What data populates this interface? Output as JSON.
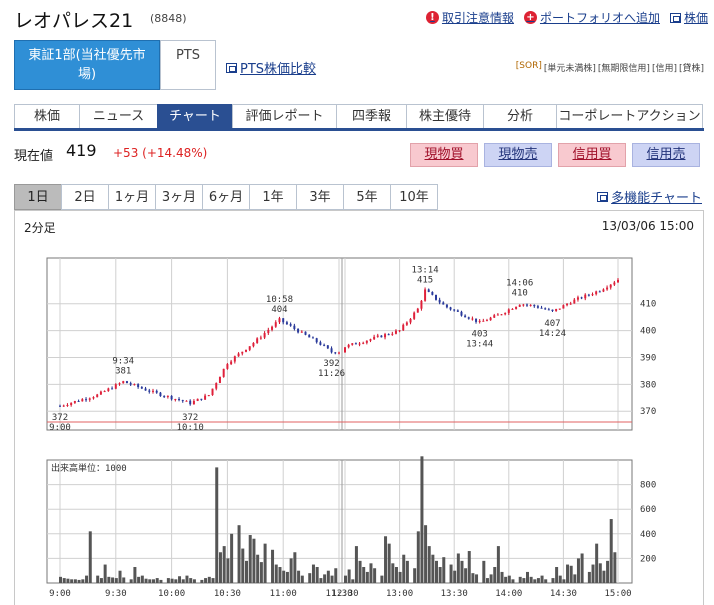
{
  "header": {
    "name": "レオパレス21",
    "code": "(8848)",
    "links": [
      "取引注意情報",
      "ポートフォリオへ追加",
      "株価"
    ]
  },
  "market": {
    "exchange_line1": "東証1部(当社優先市",
    "exchange_line2": "場)",
    "pts_label": "PTS",
    "pts_compare": "PTS株価比較",
    "badges": [
      "[SOR]",
      "[単元未満株]",
      "[無期限信用]",
      "[信用]",
      "[貸株]"
    ]
  },
  "tabs": [
    "株価",
    "ニュース",
    "チャート",
    "評価レポート",
    "四季報",
    "株主優待",
    "分析",
    "コーポレートアクション"
  ],
  "quote": {
    "label": "現在値",
    "price": "419",
    "change": "+53 (+14.48%)"
  },
  "trade_buttons": [
    "現物買",
    "現物売",
    "信用買",
    "信用売"
  ],
  "ranges": [
    "1日",
    "2日",
    "1ヶ月",
    "3ヶ月",
    "6ヶ月",
    "1年",
    "3年",
    "5年",
    "10年"
  ],
  "multi_chart": "多機能チャート",
  "chart_meta": {
    "period": "2分足",
    "timestamp": "13/03/06 15:00"
  },
  "chart_data": [
    {
      "type": "candlestick",
      "title": "",
      "y_ticks": [
        370,
        380,
        390,
        400,
        410
      ],
      "ylim": [
        363,
        427
      ],
      "reference_line": 366,
      "x_ticks": [
        "9:00",
        "9:30",
        "10:00",
        "10:30",
        "11:00",
        "11:30",
        "12:30",
        "13:00",
        "13:30",
        "14:00",
        "14:30",
        "15:00"
      ],
      "annotations": [
        {
          "value": "372",
          "time": "9:00"
        },
        {
          "value": "381",
          "time": "9:34"
        },
        {
          "value": "372",
          "time": "10:10"
        },
        {
          "value": "404",
          "time": "10:58"
        },
        {
          "value": "392",
          "time": "11:26"
        },
        {
          "value": "415",
          "time": "13:14"
        },
        {
          "value": "403",
          "time": "13:44"
        },
        {
          "value": "410",
          "time": "14:06"
        },
        {
          "value": "407",
          "time": "14:24"
        }
      ],
      "series": [
        {
          "time": "9:00",
          "close": 372
        },
        {
          "time": "9:10",
          "close": 374
        },
        {
          "time": "9:20",
          "close": 376
        },
        {
          "time": "9:34",
          "close": 381
        },
        {
          "time": "9:50",
          "close": 377
        },
        {
          "time": "10:00",
          "close": 375
        },
        {
          "time": "10:10",
          "close": 373
        },
        {
          "time": "10:20",
          "close": 376
        },
        {
          "time": "10:30",
          "close": 388
        },
        {
          "time": "10:45",
          "close": 396
        },
        {
          "time": "10:58",
          "close": 404
        },
        {
          "time": "11:10",
          "close": 399
        },
        {
          "time": "11:20",
          "close": 395
        },
        {
          "time": "11:26",
          "close": 392
        },
        {
          "time": "12:30",
          "close": 394
        },
        {
          "time": "12:45",
          "close": 397
        },
        {
          "time": "13:00",
          "close": 400
        },
        {
          "time": "13:10",
          "close": 408
        },
        {
          "time": "13:14",
          "close": 415
        },
        {
          "time": "13:25",
          "close": 409
        },
        {
          "time": "13:44",
          "close": 403
        },
        {
          "time": "13:55",
          "close": 406
        },
        {
          "time": "14:06",
          "close": 410
        },
        {
          "time": "14:15",
          "close": 409
        },
        {
          "time": "14:24",
          "close": 407
        },
        {
          "time": "14:35",
          "close": 411
        },
        {
          "time": "14:50",
          "close": 415
        },
        {
          "time": "15:00",
          "close": 419
        }
      ]
    },
    {
      "type": "bar",
      "title": "出来高単位：1000",
      "y_ticks": [
        200,
        400,
        600,
        800
      ],
      "ylim": [
        0,
        1000
      ],
      "x_ticks": [
        "9:00",
        "9:30",
        "10:00",
        "10:30",
        "11:00",
        "11:30",
        "12:30",
        "13:00",
        "13:30",
        "14:00",
        "14:30",
        "15:00"
      ],
      "values": [
        50,
        40,
        35,
        30,
        30,
        25,
        30,
        60,
        420,
        60,
        40,
        150,
        50,
        45,
        40,
        100,
        45,
        30,
        130,
        50,
        60,
        35,
        30,
        30,
        40,
        25,
        40,
        35,
        30,
        55,
        30,
        60,
        40,
        30,
        25,
        40,
        50,
        40,
        940,
        250,
        300,
        200,
        400,
        470,
        280,
        180,
        390,
        360,
        230,
        170,
        320,
        270,
        150,
        130,
        100,
        90,
        200,
        250,
        100,
        60,
        80,
        150,
        130,
        40,
        70,
        100,
        60,
        120,
        60,
        110,
        30,
        300,
        180,
        130,
        90,
        160,
        120,
        60,
        380,
        320,
        160,
        130,
        90,
        230,
        180,
        120,
        420,
        1030,
        470,
        300,
        230,
        180,
        130,
        210,
        150,
        100,
        240,
        180,
        120,
        260,
        80,
        70,
        180,
        40,
        70,
        130,
        300,
        90,
        50,
        60,
        30,
        50,
        40,
        90,
        50,
        30,
        40,
        60,
        30,
        40,
        130,
        60,
        30,
        150,
        140,
        70,
        200,
        240,
        90,
        150,
        320,
        160,
        100,
        180,
        520,
        250
      ]
    }
  ]
}
